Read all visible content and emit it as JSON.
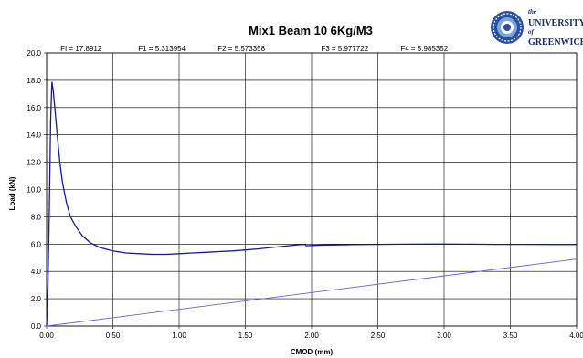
{
  "chart_data": {
    "type": "line",
    "title": "Mix1 Beam 10   6Kg/M3",
    "xlabel": "CMOD (mm)",
    "ylabel": "Load (kN)",
    "xlim": [
      0,
      4.0
    ],
    "ylim": [
      0,
      20.0
    ],
    "grid": true,
    "x_ticks": [
      "0.00",
      "0.50",
      "1.00",
      "1.50",
      "2.00",
      "2.50",
      "3.00",
      "3.50",
      "4.00"
    ],
    "y_ticks": [
      "0.0",
      "2.0",
      "4.0",
      "6.0",
      "8.0",
      "10.0",
      "12.0",
      "14.0",
      "16.0",
      "18.0",
      "20.0"
    ],
    "annotations": [
      {
        "text": "FI = 17.8912",
        "x": 0.26
      },
      {
        "text": "F1 = 5.313954",
        "x": 0.87
      },
      {
        "text": "F2 = 5.573358",
        "x": 1.47
      },
      {
        "text": "F3 = 5.977722",
        "x": 2.25
      },
      {
        "text": "F4 = 5.985352",
        "x": 2.85
      }
    ],
    "series": [
      {
        "color": "#1a1a8c",
        "x": [
          0.0,
          0.01,
          0.02,
          0.03,
          0.04,
          0.05,
          0.06,
          0.08,
          0.1,
          0.12,
          0.15,
          0.18,
          0.22,
          0.27,
          0.33,
          0.4,
          0.5,
          0.6,
          0.7,
          0.8,
          0.9,
          1.0,
          1.1,
          1.2,
          1.3,
          1.4,
          1.5,
          1.6,
          1.7,
          1.8,
          1.9,
          1.95,
          1.96,
          2.0,
          2.1,
          2.3,
          2.5,
          2.7,
          2.9,
          3.0,
          3.2,
          3.4,
          3.6,
          3.8,
          4.0
        ],
        "y": [
          0.0,
          3.0,
          8.0,
          15.0,
          17.89,
          17.2,
          16.2,
          14.0,
          12.0,
          10.5,
          9.0,
          8.0,
          7.3,
          6.6,
          6.1,
          5.75,
          5.5,
          5.35,
          5.3,
          5.25,
          5.25,
          5.3,
          5.35,
          5.4,
          5.45,
          5.5,
          5.57,
          5.65,
          5.75,
          5.85,
          5.95,
          5.98,
          5.88,
          5.9,
          5.93,
          5.96,
          5.98,
          5.99,
          6.0,
          6.0,
          5.99,
          5.98,
          5.98,
          5.97,
          5.97
        ]
      },
      {
        "color": "#6666cc",
        "x": [
          0.0,
          4.0
        ],
        "y": [
          0.0,
          4.9
        ]
      }
    ]
  },
  "logo": {
    "line1": "the",
    "line2": "UNIVERSITY",
    "line3": "of",
    "line4": "GREENWICH"
  }
}
